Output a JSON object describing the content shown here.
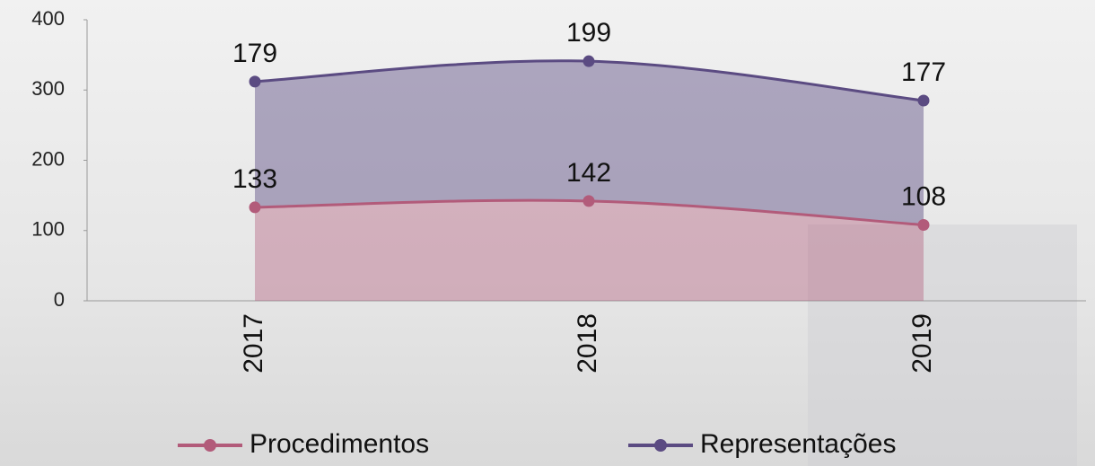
{
  "chart_data": {
    "type": "stacked-area",
    "categories": [
      "2017",
      "2018",
      "2019"
    ],
    "series": [
      {
        "name": "Procedimentos",
        "color": "#b25b7a",
        "values": [
          133,
          142,
          108
        ]
      },
      {
        "name": "Representações",
        "color": "#5b4b82",
        "values": [
          179,
          199,
          177
        ]
      }
    ],
    "ylim": [
      0,
      400
    ],
    "yticks": [
      0,
      100,
      200,
      300,
      400
    ],
    "grid": false
  }
}
